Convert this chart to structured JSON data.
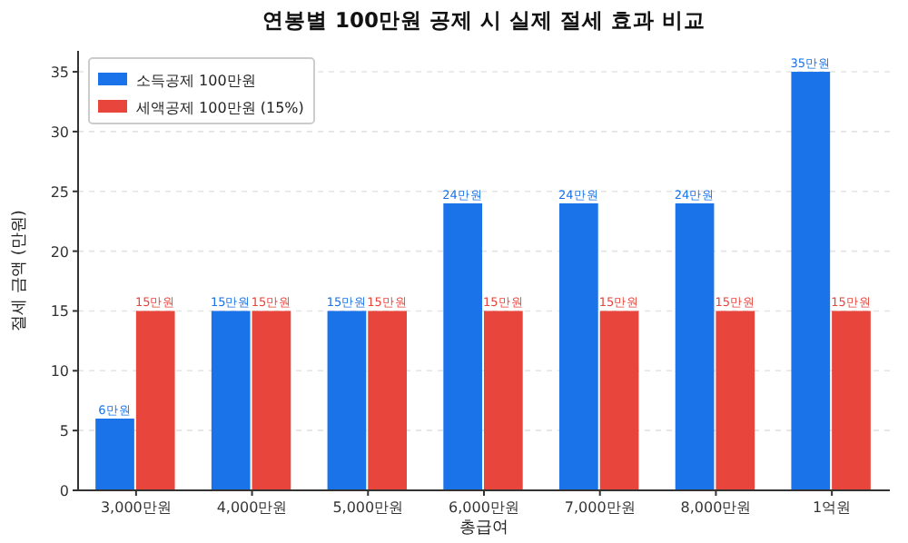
{
  "chart_data": {
    "type": "bar",
    "title": "연봉별 100만원 공제 시 실제 절세 효과 비교",
    "xlabel": "총급여",
    "ylabel": "절세 금액 (만원)",
    "categories": [
      "3,000만원",
      "4,000만원",
      "5,000만원",
      "6,000만원",
      "7,000만원",
      "8,000만원",
      "1억원"
    ],
    "series": [
      {
        "name": "소득공제 100만원",
        "color": "#1a73e8",
        "values": [
          6,
          15,
          15,
          24,
          24,
          24,
          35
        ],
        "value_labels": [
          "6만원",
          "15만원",
          "15만원",
          "24만원",
          "24만원",
          "24만원",
          "35만원"
        ]
      },
      {
        "name": "세액공제 100만원 (15%)",
        "color": "#e8453c",
        "values": [
          15,
          15,
          15,
          15,
          15,
          15,
          15
        ],
        "value_labels": [
          "15만원",
          "15만원",
          "15만원",
          "15만원",
          "15만원",
          "15만원",
          "15만원"
        ]
      }
    ],
    "ylim": [
      0,
      36.75
    ],
    "yticks": [
      0,
      5,
      10,
      15,
      20,
      25,
      30,
      35
    ],
    "grid": "y",
    "legend": "top left"
  }
}
